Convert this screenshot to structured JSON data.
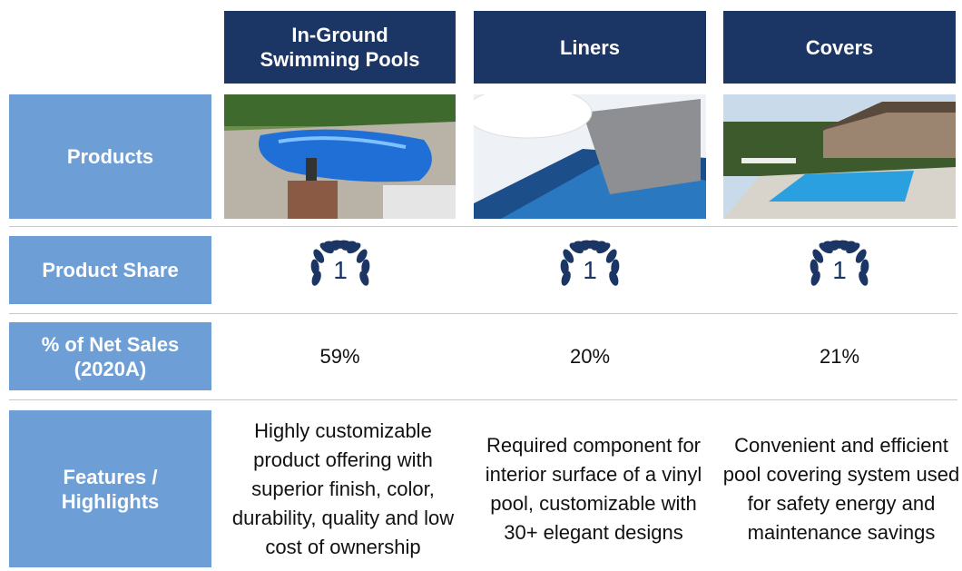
{
  "columns": [
    "In-Ground Swimming Pools",
    "Liners",
    "Covers"
  ],
  "rows": [
    {
      "label": "Products"
    },
    {
      "label": "Product Share",
      "values": [
        "1",
        "1",
        "1"
      ]
    },
    {
      "label": "% of Net Sales (2020A)",
      "values": [
        "59%",
        "20%",
        "21%"
      ]
    },
    {
      "label": "Features / Highlights",
      "values": [
        "Highly customizable product offering with superior finish, color, durability, quality and low cost of ownership",
        "Required component for interior surface of a vinyl pool, customizable with 30+ elegant designs",
        "Convenient and efficient pool covering system used for safety energy and maintenance savings"
      ]
    }
  ]
}
